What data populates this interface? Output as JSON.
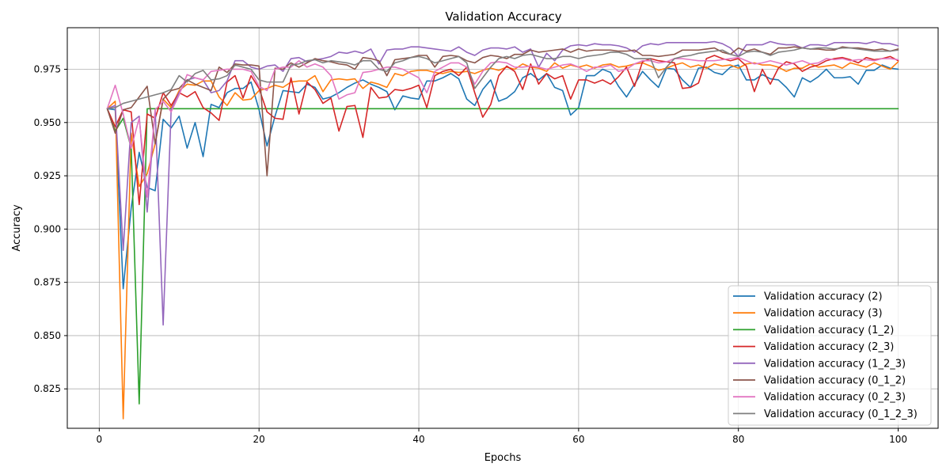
{
  "chart_data": {
    "type": "line",
    "title": "Validation Accuracy",
    "xlabel": "Epochs",
    "ylabel": "Accuracy",
    "xlim": [
      -4,
      105
    ],
    "ylim": [
      0.8065,
      0.9945
    ],
    "xticks": [
      0,
      20,
      40,
      60,
      80,
      100
    ],
    "xtick_labels": [
      "0",
      "20",
      "40",
      "60",
      "80",
      "100"
    ],
    "yticks": [
      0.825,
      0.85,
      0.875,
      0.9,
      0.925,
      0.95,
      0.975
    ],
    "ytick_labels": [
      "0.825",
      "0.850",
      "0.875",
      "0.900",
      "0.925",
      "0.950",
      "0.975"
    ],
    "grid": true,
    "legend_position": "lower right",
    "x": [
      1,
      2,
      3,
      4,
      5,
      6,
      7,
      8,
      9,
      10,
      11,
      12,
      13,
      14,
      15,
      16,
      17,
      18,
      19,
      20,
      21,
      22,
      23,
      24,
      25,
      26,
      27,
      28,
      29,
      30,
      31,
      32,
      33,
      34,
      35,
      36,
      37,
      38,
      39,
      40,
      41,
      42,
      43,
      44,
      45,
      46,
      47,
      48,
      49,
      50,
      51,
      52,
      53,
      54,
      55,
      56,
      57,
      58,
      59,
      60,
      61,
      62,
      63,
      64,
      65,
      66,
      67,
      68,
      69,
      70,
      71,
      72,
      73,
      74,
      75,
      76,
      77,
      78,
      79,
      80,
      81,
      82,
      83,
      84,
      85,
      86,
      87,
      88,
      89,
      90,
      91,
      92,
      93,
      94,
      95,
      96,
      97,
      98,
      99,
      100
    ],
    "series": [
      {
        "name": "Validation accuracy (2)",
        "color": "#1f77b4",
        "values": [
          0.9565,
          0.956,
          0.872,
          0.91,
          0.936,
          0.9195,
          0.918,
          0.9515,
          0.9475,
          0.953,
          0.938,
          0.95,
          0.934,
          0.9585,
          0.957,
          0.964,
          0.966,
          0.966,
          0.969,
          0.956,
          0.939,
          0.953,
          0.965,
          0.9645,
          0.964,
          0.968,
          0.9665,
          0.961,
          0.962,
          0.964,
          0.9665,
          0.9685,
          0.97,
          0.968,
          0.9665,
          0.9645,
          0.956,
          0.9625,
          0.9615,
          0.961,
          0.9695,
          0.9695,
          0.971,
          0.973,
          0.9705,
          0.961,
          0.958,
          0.9655,
          0.97,
          0.96,
          0.9615,
          0.9645,
          0.971,
          0.973,
          0.97,
          0.973,
          0.9665,
          0.965,
          0.9535,
          0.957,
          0.972,
          0.972,
          0.975,
          0.9735,
          0.967,
          0.962,
          0.968,
          0.974,
          0.97,
          0.9665,
          0.9755,
          0.975,
          0.97,
          0.9665,
          0.9755,
          0.976,
          0.9735,
          0.9725,
          0.976,
          0.977,
          0.97,
          0.97,
          0.9725,
          0.9705,
          0.97,
          0.9665,
          0.962,
          0.971,
          0.969,
          0.9715,
          0.975,
          0.971,
          0.971,
          0.9715,
          0.968,
          0.9745,
          0.9745,
          0.977,
          0.9755,
          0.975
        ]
      },
      {
        "name": "Validation accuracy (3)",
        "color": "#ff7f0e",
        "values": [
          0.9565,
          0.96,
          0.811,
          0.945,
          0.92,
          0.926,
          0.94,
          0.961,
          0.957,
          0.965,
          0.968,
          0.9675,
          0.9695,
          0.9695,
          0.962,
          0.958,
          0.964,
          0.9605,
          0.961,
          0.965,
          0.966,
          0.9675,
          0.9665,
          0.969,
          0.9695,
          0.9695,
          0.972,
          0.9645,
          0.97,
          0.9705,
          0.97,
          0.9705,
          0.966,
          0.969,
          0.968,
          0.9665,
          0.973,
          0.972,
          0.974,
          0.9745,
          0.9745,
          0.9735,
          0.973,
          0.974,
          0.9735,
          0.974,
          0.973,
          0.9745,
          0.9755,
          0.9745,
          0.976,
          0.975,
          0.9775,
          0.976,
          0.9755,
          0.974,
          0.978,
          0.9755,
          0.977,
          0.976,
          0.977,
          0.9755,
          0.977,
          0.9775,
          0.976,
          0.9765,
          0.9775,
          0.978,
          0.9765,
          0.9745,
          0.9755,
          0.977,
          0.978,
          0.976,
          0.977,
          0.9755,
          0.9775,
          0.9765,
          0.977,
          0.9755,
          0.9775,
          0.978,
          0.977,
          0.977,
          0.976,
          0.974,
          0.9755,
          0.9755,
          0.9775,
          0.976,
          0.9765,
          0.977,
          0.9755,
          0.978,
          0.977,
          0.976,
          0.978,
          0.9765,
          0.975,
          0.9785
        ]
      },
      {
        "name": "Validation accuracy (1_2)",
        "color": "#2ca02c",
        "values": [
          0.9565,
          0.946,
          0.952,
          0.938,
          0.818,
          0.9565,
          0.9565,
          0.9565,
          0.9565,
          0.9565,
          0.9565,
          0.9565,
          0.9565,
          0.9565,
          0.9565,
          0.9565,
          0.9565,
          0.9565,
          0.9565,
          0.9565,
          0.9565,
          0.9565,
          0.9565,
          0.9565,
          0.9565,
          0.9565,
          0.9565,
          0.9565,
          0.9565,
          0.9565,
          0.9565,
          0.9565,
          0.9565,
          0.9565,
          0.9565,
          0.9565,
          0.9565,
          0.9565,
          0.9565,
          0.9565,
          0.9565,
          0.9565,
          0.9565,
          0.9565,
          0.9565,
          0.9565,
          0.9565,
          0.9565,
          0.9565,
          0.9565,
          0.9565,
          0.9565,
          0.9565,
          0.9565,
          0.9565,
          0.9565,
          0.9565,
          0.9565,
          0.9565,
          0.9565,
          0.9565,
          0.9565,
          0.9565,
          0.9565,
          0.9565,
          0.9565,
          0.9565,
          0.9565,
          0.9565,
          0.9565,
          0.9565,
          0.9565,
          0.9565,
          0.9565,
          0.9565,
          0.9565,
          0.9565,
          0.9565,
          0.9565,
          0.9565,
          0.9565,
          0.9565,
          0.9565,
          0.9565,
          0.9565,
          0.9565,
          0.9565,
          0.9565,
          0.9565,
          0.9565,
          0.9565,
          0.9565,
          0.9565,
          0.9565,
          0.9565,
          0.9565,
          0.9565,
          0.9565,
          0.9565,
          0.9565
        ]
      },
      {
        "name": "Validation accuracy (2_3)",
        "color": "#d62728",
        "values": [
          0.9565,
          0.948,
          0.956,
          0.955,
          0.9115,
          0.954,
          0.952,
          0.964,
          0.958,
          0.964,
          0.962,
          0.9645,
          0.957,
          0.9545,
          0.951,
          0.969,
          0.972,
          0.9615,
          0.972,
          0.966,
          0.955,
          0.952,
          0.9515,
          0.971,
          0.954,
          0.969,
          0.9655,
          0.959,
          0.9615,
          0.946,
          0.9575,
          0.958,
          0.943,
          0.9665,
          0.9615,
          0.962,
          0.9655,
          0.965,
          0.966,
          0.9675,
          0.957,
          0.972,
          0.974,
          0.975,
          0.972,
          0.976,
          0.964,
          0.9525,
          0.9585,
          0.972,
          0.9765,
          0.974,
          0.9655,
          0.9775,
          0.968,
          0.973,
          0.9705,
          0.972,
          0.961,
          0.97,
          0.97,
          0.9685,
          0.97,
          0.968,
          0.9715,
          0.976,
          0.967,
          0.9785,
          0.98,
          0.979,
          0.9785,
          0.978,
          0.966,
          0.9665,
          0.9685,
          0.98,
          0.9815,
          0.98,
          0.979,
          0.98,
          0.9765,
          0.9645,
          0.975,
          0.968,
          0.9755,
          0.9785,
          0.9775,
          0.974,
          0.976,
          0.977,
          0.979,
          0.98,
          0.9805,
          0.9795,
          0.978,
          0.9805,
          0.9795,
          0.98,
          0.981,
          0.979
        ]
      },
      {
        "name": "Validation accuracy (1_2_3)",
        "color": "#9467bd",
        "values": [
          0.9565,
          0.958,
          0.89,
          0.95,
          0.953,
          0.908,
          0.956,
          0.855,
          0.956,
          0.964,
          0.97,
          0.971,
          0.97,
          0.964,
          0.965,
          0.9695,
          0.979,
          0.979,
          0.976,
          0.975,
          0.9765,
          0.977,
          0.974,
          0.98,
          0.9805,
          0.9785,
          0.9795,
          0.98,
          0.981,
          0.983,
          0.9825,
          0.9835,
          0.9825,
          0.9845,
          0.9775,
          0.984,
          0.9845,
          0.9845,
          0.9855,
          0.9855,
          0.985,
          0.9845,
          0.984,
          0.9835,
          0.9855,
          0.983,
          0.9815,
          0.984,
          0.985,
          0.985,
          0.9845,
          0.9855,
          0.983,
          0.9845,
          0.976,
          0.9825,
          0.979,
          0.984,
          0.986,
          0.9865,
          0.986,
          0.987,
          0.9865,
          0.9865,
          0.986,
          0.985,
          0.983,
          0.986,
          0.987,
          0.9865,
          0.9875,
          0.9875,
          0.9875,
          0.9875,
          0.9875,
          0.9875,
          0.988,
          0.987,
          0.985,
          0.981,
          0.9865,
          0.9865,
          0.9865,
          0.988,
          0.987,
          0.9865,
          0.9865,
          0.985,
          0.9865,
          0.9865,
          0.986,
          0.9875,
          0.9875,
          0.9875,
          0.9875,
          0.987,
          0.988,
          0.987,
          0.987,
          0.986
        ]
      },
      {
        "name": "Validation accuracy (0_1_2)",
        "color": "#8c564b",
        "values": [
          0.9565,
          0.945,
          0.956,
          0.957,
          0.962,
          0.967,
          0.94,
          0.961,
          0.965,
          0.966,
          0.97,
          0.968,
          0.9665,
          0.965,
          0.976,
          0.9735,
          0.9775,
          0.977,
          0.977,
          0.9765,
          0.925,
          0.9755,
          0.975,
          0.978,
          0.976,
          0.978,
          0.98,
          0.979,
          0.9785,
          0.9775,
          0.977,
          0.975,
          0.9805,
          0.98,
          0.979,
          0.972,
          0.9795,
          0.98,
          0.9805,
          0.9815,
          0.9815,
          0.976,
          0.981,
          0.9815,
          0.981,
          0.979,
          0.978,
          0.9805,
          0.9815,
          0.981,
          0.98,
          0.982,
          0.982,
          0.984,
          0.983,
          0.9835,
          0.984,
          0.9845,
          0.983,
          0.9845,
          0.9835,
          0.984,
          0.984,
          0.984,
          0.9835,
          0.9835,
          0.984,
          0.9815,
          0.9815,
          0.981,
          0.9815,
          0.982,
          0.984,
          0.984,
          0.984,
          0.9845,
          0.985,
          0.983,
          0.982,
          0.985,
          0.9835,
          0.9845,
          0.983,
          0.982,
          0.985,
          0.985,
          0.9855,
          0.985,
          0.9845,
          0.9845,
          0.984,
          0.984,
          0.9855,
          0.985,
          0.985,
          0.9845,
          0.984,
          0.9845,
          0.9835,
          0.9845
        ]
      },
      {
        "name": "Validation accuracy (0_2_3)",
        "color": "#e377c2",
        "values": [
          0.9565,
          0.9675,
          0.954,
          0.938,
          0.952,
          0.915,
          0.956,
          0.96,
          0.955,
          0.963,
          0.9725,
          0.971,
          0.97,
          0.974,
          0.9745,
          0.975,
          0.975,
          0.975,
          0.974,
          0.967,
          0.965,
          0.975,
          0.976,
          0.976,
          0.979,
          0.976,
          0.9775,
          0.976,
          0.972,
          0.961,
          0.963,
          0.964,
          0.9735,
          0.974,
          0.975,
          0.976,
          0.976,
          0.975,
          0.973,
          0.971,
          0.964,
          0.974,
          0.976,
          0.978,
          0.978,
          0.976,
          0.968,
          0.974,
          0.978,
          0.9785,
          0.978,
          0.976,
          0.976,
          0.9765,
          0.976,
          0.975,
          0.976,
          0.977,
          0.9775,
          0.976,
          0.974,
          0.976,
          0.976,
          0.977,
          0.974,
          0.975,
          0.9775,
          0.979,
          0.979,
          0.978,
          0.9785,
          0.98,
          0.98,
          0.9795,
          0.979,
          0.979,
          0.979,
          0.9795,
          0.98,
          0.9805,
          0.979,
          0.9775,
          0.978,
          0.979,
          0.978,
          0.977,
          0.978,
          0.979,
          0.9775,
          0.978,
          0.98,
          0.9795,
          0.98,
          0.979,
          0.9795,
          0.9795,
          0.979,
          0.98,
          0.98,
          0.9795
        ]
      },
      {
        "name": "Validation accuracy (0_1_2_3)",
        "color": "#7f7f7f",
        "values": [
          0.9565,
          0.957,
          0.959,
          0.96,
          0.961,
          0.962,
          0.963,
          0.964,
          0.9655,
          0.972,
          0.969,
          0.973,
          0.9745,
          0.97,
          0.9705,
          0.972,
          0.977,
          0.976,
          0.975,
          0.97,
          0.969,
          0.969,
          0.969,
          0.977,
          0.9775,
          0.979,
          0.9795,
          0.978,
          0.979,
          0.9785,
          0.978,
          0.977,
          0.979,
          0.979,
          0.975,
          0.974,
          0.978,
          0.979,
          0.9805,
          0.981,
          0.98,
          0.978,
          0.979,
          0.98,
          0.981,
          0.978,
          0.966,
          0.971,
          0.976,
          0.98,
          0.981,
          0.98,
          0.9815,
          0.982,
          0.981,
          0.98,
          0.98,
          0.981,
          0.981,
          0.98,
          0.981,
          0.9815,
          0.982,
          0.983,
          0.983,
          0.982,
          0.98,
          0.98,
          0.98,
          0.971,
          0.976,
          0.98,
          0.981,
          0.9815,
          0.9825,
          0.983,
          0.9835,
          0.984,
          0.982,
          0.981,
          0.983,
          0.9835,
          0.983,
          0.9815,
          0.983,
          0.9835,
          0.984,
          0.985,
          0.9845,
          0.985,
          0.985,
          0.9845,
          0.985,
          0.985,
          0.9845,
          0.984,
          0.9835,
          0.9835,
          0.9835,
          0.984
        ]
      }
    ]
  }
}
